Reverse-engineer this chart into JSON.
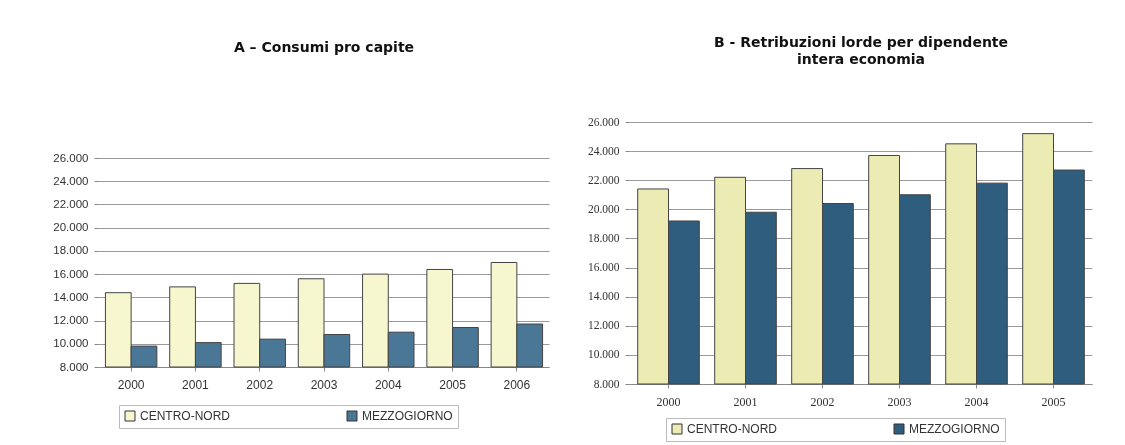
{
  "chart_data": [
    {
      "type": "bar",
      "title": "A – Consumi pro capite",
      "categories": [
        "2000",
        "2001",
        "2002",
        "2003",
        "2004",
        "2005",
        "2006"
      ],
      "series": [
        {
          "name": "CENTRO-NORD",
          "color": "#f7f7cf",
          "values": [
            14400,
            14900,
            15200,
            15600,
            16000,
            16400,
            17000
          ]
        },
        {
          "name": "MEZZOGIORNO",
          "color": "#4b7797",
          "values": [
            9800,
            10100,
            10400,
            10800,
            11000,
            11400,
            11700
          ]
        }
      ],
      "ylim": [
        8000,
        26000
      ],
      "yticks": [
        {
          "value": 8000,
          "label": "8.000"
        },
        {
          "value": 10000,
          "label": "10.000"
        },
        {
          "value": 12000,
          "label": "12.000"
        },
        {
          "value": 14000,
          "label": "14.000"
        },
        {
          "value": 16000,
          "label": "16.000"
        },
        {
          "value": 18000,
          "label": "18.000"
        },
        {
          "value": 20000,
          "label": "20.000"
        },
        {
          "value": 22000,
          "label": "22.000"
        },
        {
          "value": 24000,
          "label": "24.000"
        },
        {
          "value": 26000,
          "label": "26.000"
        }
      ],
      "grid": "y",
      "legend": "bottom"
    },
    {
      "type": "bar",
      "title": "B - Retribuzioni lorde per dipendente\nintera economia",
      "categories": [
        "2000",
        "2001",
        "2002",
        "2003",
        "2004",
        "2005"
      ],
      "series": [
        {
          "name": "CENTRO-NORD",
          "color": "#ebebb3",
          "values": [
            21400,
            22200,
            22800,
            23700,
            24500,
            25200
          ]
        },
        {
          "name": "MEZZOGIORNO",
          "color": "#2f5d7e",
          "values": [
            19200,
            19800,
            20400,
            21000,
            21800,
            22700
          ]
        }
      ],
      "ylim": [
        8000,
        26000
      ],
      "yticks": [
        {
          "value": 8000,
          "label": "8.000"
        },
        {
          "value": 10000,
          "label": "10.000"
        },
        {
          "value": 12000,
          "label": "12.000"
        },
        {
          "value": 14000,
          "label": "14.000"
        },
        {
          "value": 16000,
          "label": "16.000"
        },
        {
          "value": 18000,
          "label": "18.000"
        },
        {
          "value": 20000,
          "label": "20.000"
        },
        {
          "value": 22000,
          "label": "22.000"
        },
        {
          "value": 24000,
          "label": "24.000"
        },
        {
          "value": 26000,
          "label": "26.000"
        }
      ],
      "grid": "y",
      "legend": "bottom"
    }
  ]
}
